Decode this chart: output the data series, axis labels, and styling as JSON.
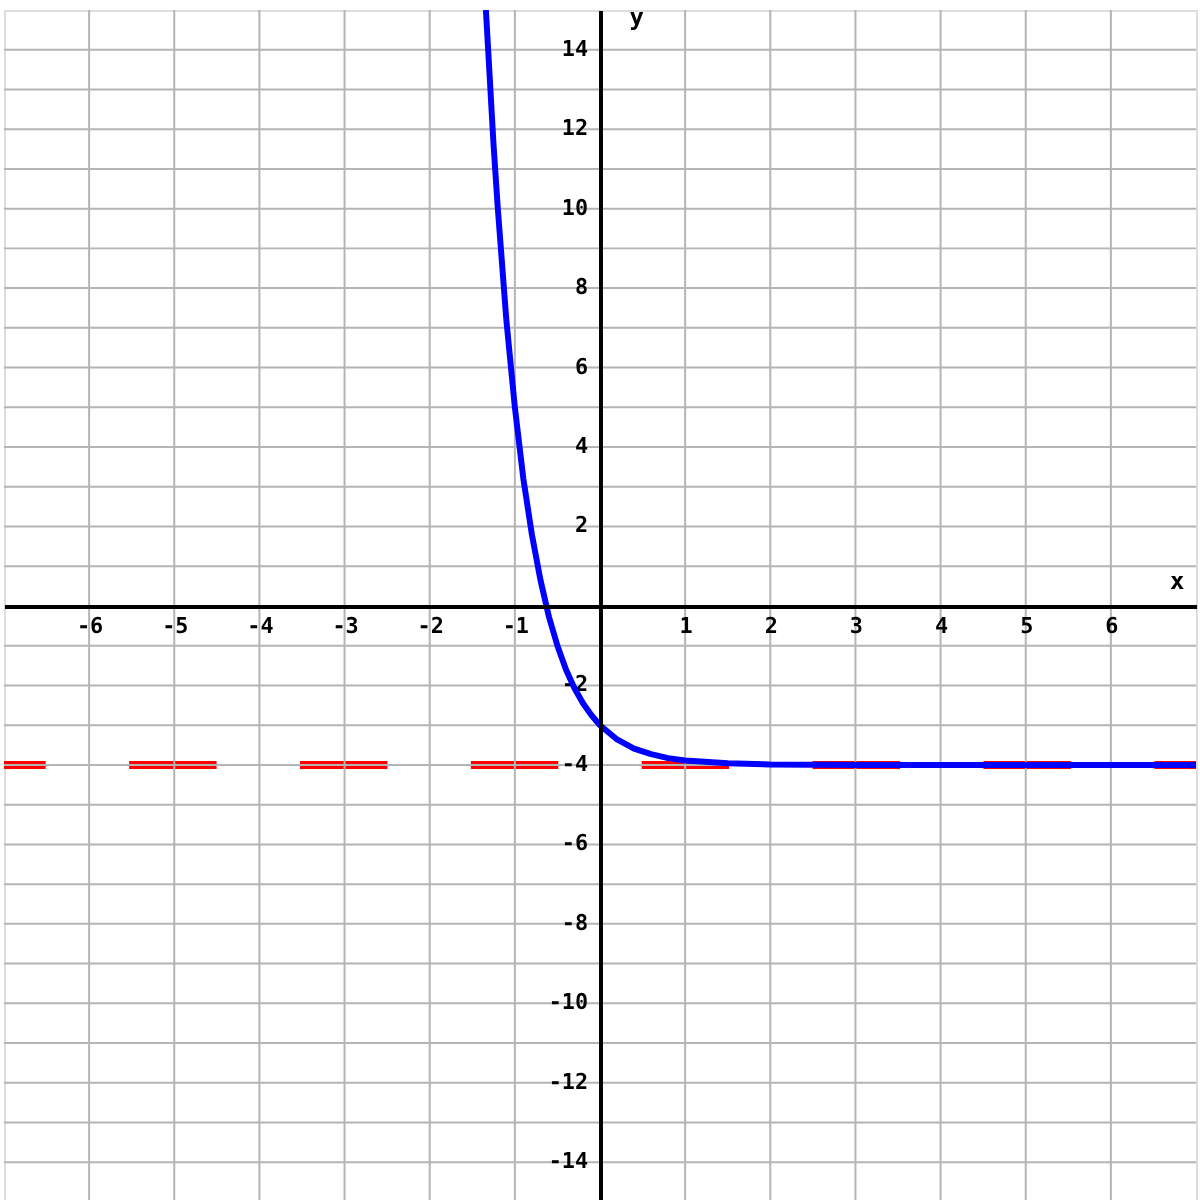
{
  "chart_data": {
    "type": "line",
    "xlabel": "x",
    "ylabel": "y",
    "x": [
      -1.34,
      -1.25,
      -1.2,
      -1.1,
      -1.0,
      -0.9,
      -0.8,
      -0.7,
      -0.6,
      -0.5,
      -0.4,
      -0.3,
      -0.2,
      -0.1,
      0,
      0.2,
      0.4,
      0.6,
      0.8,
      1.0,
      1.5,
      2,
      3,
      5,
      7
    ],
    "series": [
      {
        "color": "#0000ff",
        "values": [
          15.0,
          11.6,
          10.0,
          7.2,
          5.0,
          3.2,
          1.8,
          0.66,
          -0.27,
          -1.0,
          -1.6,
          -2.07,
          -2.45,
          -2.75,
          -3.0,
          -3.36,
          -3.59,
          -3.73,
          -3.83,
          -3.89,
          -3.96,
          -3.99,
          -4.0,
          -4.0,
          -4.0
        ]
      }
    ],
    "xlim": [
      -7,
      7
    ],
    "ylim": [
      -15,
      15
    ],
    "xticks": [
      -6,
      -5,
      -4,
      -3,
      -2,
      -1,
      1,
      2,
      3,
      4,
      5,
      6
    ],
    "yticks": [
      -14,
      {
        "value": -13,
        "label": null
      },
      -12,
      {
        "value": -11,
        "label": null
      },
      -10,
      {
        "value": -9,
        "label": null
      },
      -8,
      {
        "value": -7,
        "label": null
      },
      -6,
      {
        "value": -5,
        "label": null
      },
      -4,
      {
        "value": -3,
        "label": null
      },
      -2,
      {
        "value": -1,
        "label": null
      },
      {
        "value": 1,
        "label": null
      },
      2,
      {
        "value": 3,
        "label": null
      },
      4,
      {
        "value": 5,
        "label": null
      },
      6,
      {
        "value": 7,
        "label": null
      },
      8,
      {
        "value": 9,
        "label": null
      },
      10,
      {
        "value": 11,
        "label": null
      },
      12,
      {
        "value": 13,
        "label": null
      },
      14
    ],
    "ref_lines": [
      {
        "axis": "y",
        "value": -4,
        "color": "#ff0000",
        "line_style": "dashed"
      }
    ],
    "grid": true,
    "marker": "none",
    "line_style": "solid"
  }
}
